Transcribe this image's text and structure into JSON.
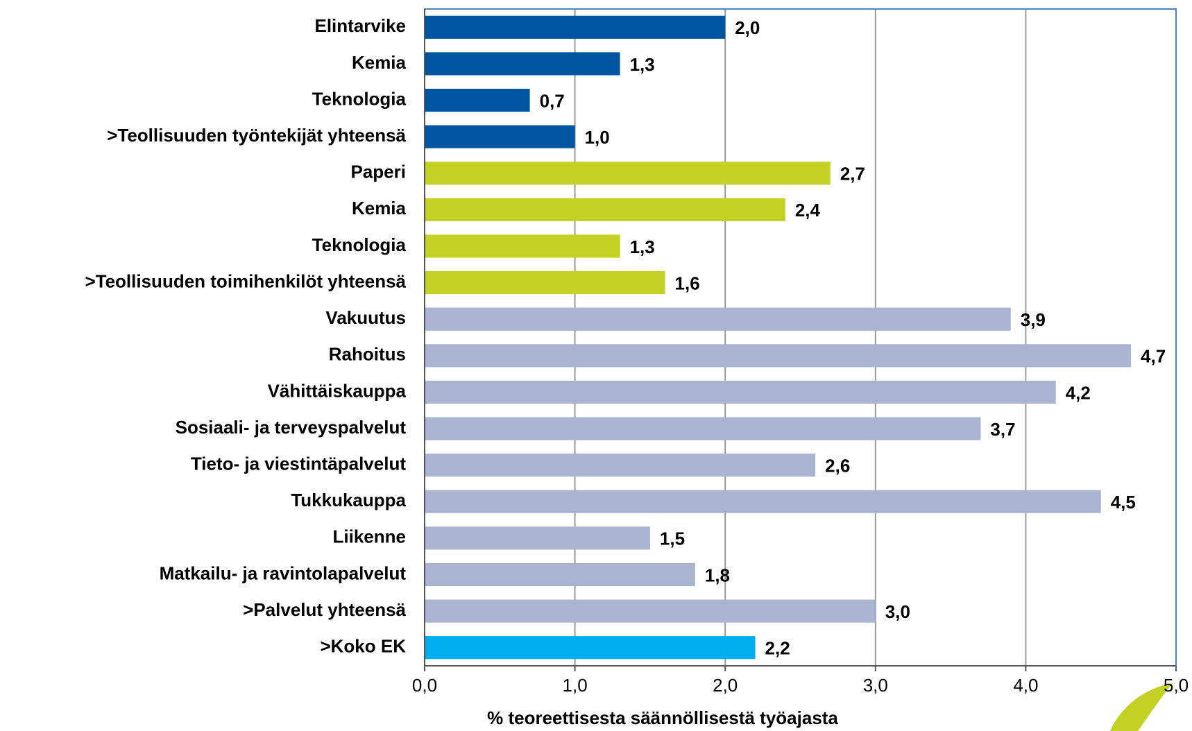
{
  "chart_data": {
    "type": "hbar",
    "x_label": "% teoreettisesta säännöllisestä työajasta",
    "categories": [
      "Elintarvike",
      "Kemia",
      "Teknologia",
      ">Teollisuuden työntekijät yhteensä",
      "Paperi",
      "Kemia",
      "Teknologia",
      ">Teollisuuden toimihenkilöt yhteensä",
      "Vakuutus",
      "Rahoitus",
      "Vähittäiskauppa",
      "Sosiaali- ja terveyspalvelut",
      "Tieto- ja viestintäpalvelut",
      "Tukkukauppa",
      "Liikenne",
      "Matkailu- ja ravintolapalvelut",
      ">Palvelut yhteensä",
      ">Koko EK"
    ],
    "values": [
      2.0,
      1.3,
      0.7,
      1.0,
      2.7,
      2.4,
      1.3,
      1.6,
      3.9,
      4.7,
      4.2,
      3.7,
      2.6,
      4.5,
      1.5,
      1.8,
      3.0,
      2.2
    ],
    "value_labels": [
      "2,0",
      "1,3",
      "0,7",
      "1,0",
      "2,7",
      "2,4",
      "1,3",
      "1,6",
      "3,9",
      "4,7",
      "4,2",
      "3,7",
      "2,6",
      "4,5",
      "1,5",
      "1,8",
      "3,0",
      "2,2"
    ],
    "colors": [
      "#0055a0",
      "#0055a0",
      "#0055a0",
      "#0055a0",
      "#c3d024",
      "#c3d024",
      "#c3d024",
      "#c3d024",
      "#a8b4d0",
      "#a8b4d0",
      "#a8b4d0",
      "#a8b4d0",
      "#a8b4d0",
      "#a8b4d0",
      "#a8b4d0",
      "#a8b4d0",
      "#a8b4d0",
      "#00adef"
    ],
    "xlim": [
      0,
      5
    ],
    "xticks": [
      {
        "value": 0,
        "label": "0,0"
      },
      {
        "value": 1,
        "label": "1,0"
      },
      {
        "value": 2,
        "label": "2,0"
      },
      {
        "value": 3,
        "label": "3,0"
      },
      {
        "value": 4,
        "label": "4,0"
      },
      {
        "value": 5,
        "label": "5,0"
      }
    ],
    "grid": true
  }
}
